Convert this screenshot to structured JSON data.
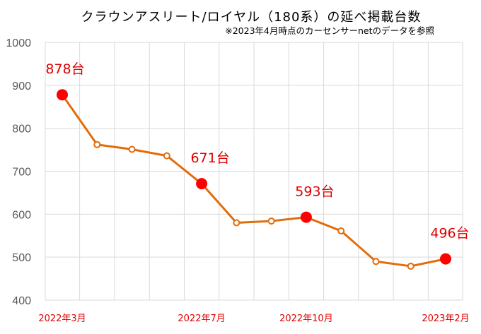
{
  "chart_data": {
    "type": "line",
    "title": "クラウンアスリート/ロイヤル（180系）の延べ掲載台数",
    "subtitle": "※2023年4月時点のカーセンサーnetのデータを参照",
    "ylim": [
      400,
      1000
    ],
    "yticks": [
      "400",
      "500",
      "600",
      "700",
      "800",
      "900",
      "1000"
    ],
    "xtick_labels": [
      {
        "index": 0,
        "label": "2022年3月"
      },
      {
        "index": 4,
        "label": "2022年7月"
      },
      {
        "index": 7,
        "label": "2022年10月"
      },
      {
        "index": 11,
        "label": "2023年2月"
      }
    ],
    "x": [
      "2022年3月",
      "2022年4月",
      "2022年5月",
      "2022年6月",
      "2022年7月",
      "2022年8月",
      "2022年9月",
      "2022年10月",
      "2022年11月",
      "2022年12月",
      "2023年1月",
      "2023年2月"
    ],
    "values": [
      878,
      762,
      751,
      736,
      671,
      580,
      584,
      593,
      561,
      490,
      479,
      496
    ],
    "highlighted": [
      0,
      4,
      7,
      11
    ],
    "data_labels": [
      {
        "index": 0,
        "label": "878台"
      },
      {
        "index": 4,
        "label": "671台"
      },
      {
        "index": 7,
        "label": "593台"
      },
      {
        "index": 11,
        "label": "496台"
      }
    ],
    "grid": true,
    "colors": {
      "line": "#E36C0A",
      "highlight": "#FF0000",
      "label": "#E00000",
      "grid": "#D9D9D9",
      "axis_text": "#595959"
    }
  }
}
